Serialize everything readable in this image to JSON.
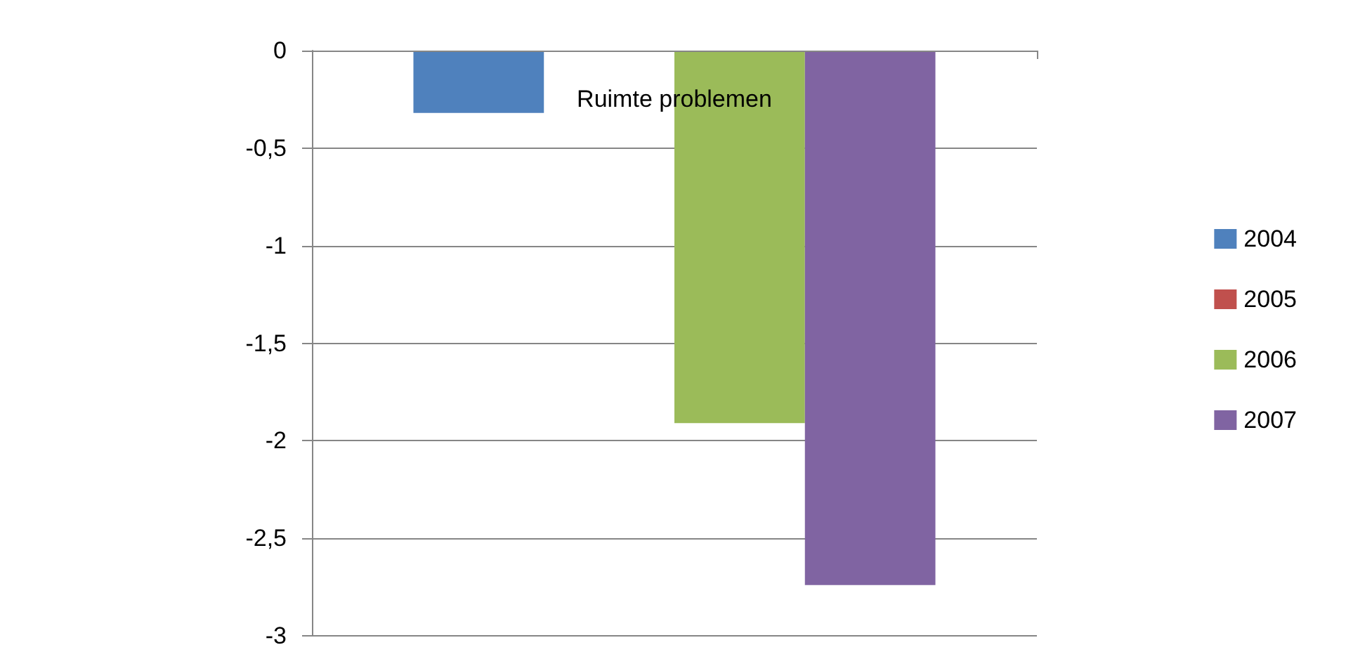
{
  "chart_data": {
    "type": "bar",
    "categories": [
      "Ruimte problemen"
    ],
    "series": [
      {
        "name": "2004",
        "color": "#4f81bd",
        "values": [
          -0.32
        ]
      },
      {
        "name": "2005",
        "color": "#c0504d",
        "values": [
          0
        ]
      },
      {
        "name": "2006",
        "color": "#9bbb59",
        "values": [
          -1.91
        ]
      },
      {
        "name": "2007",
        "color": "#8064a2",
        "values": [
          -2.74
        ]
      }
    ],
    "ylim": [
      -3,
      0
    ],
    "yticks": [
      0,
      {
        "value": -0.5,
        "label": "-0,5"
      },
      -1,
      {
        "value": -1.5,
        "label": "-1,5"
      },
      -2,
      {
        "value": -2.5,
        "label": "-2,5"
      },
      -3
    ],
    "grid": "y",
    "legend": "right"
  }
}
